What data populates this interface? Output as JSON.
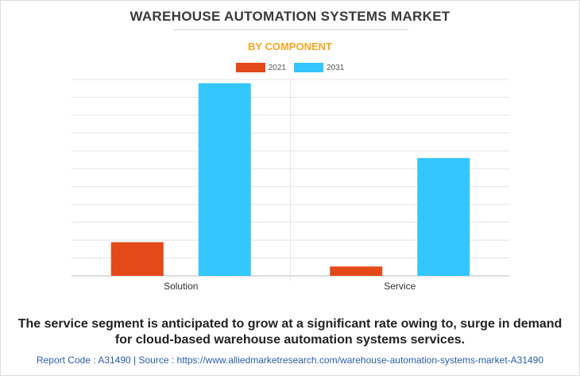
{
  "header": {
    "title": "WAREHOUSE AUTOMATION SYSTEMS MARKET",
    "subtitle": "BY COMPONENT"
  },
  "chart_data": {
    "type": "bar",
    "categories": [
      "Solution",
      "Service"
    ],
    "series": [
      {
        "name": "2021",
        "color": "#e44a19",
        "values": [
          1.8,
          0.5
        ]
      },
      {
        "name": "2031",
        "color": "#33c6ff",
        "values": [
          10.3,
          6.3
        ]
      }
    ],
    "ylim": [
      0,
      10.5
    ],
    "grid": true,
    "legend": "top-center",
    "xlabel": "",
    "ylabel": ""
  },
  "caption": {
    "line1": "The service segment is anticipated to grow at a significant rate owing to, surge in demand",
    "line2": "for cloud-based warehouse automation systems services."
  },
  "footer": {
    "text": "Report Code : A31490  |  Source : https://www.alliedmarketresearch.com/warehouse-automation-systems-market-A31490"
  }
}
